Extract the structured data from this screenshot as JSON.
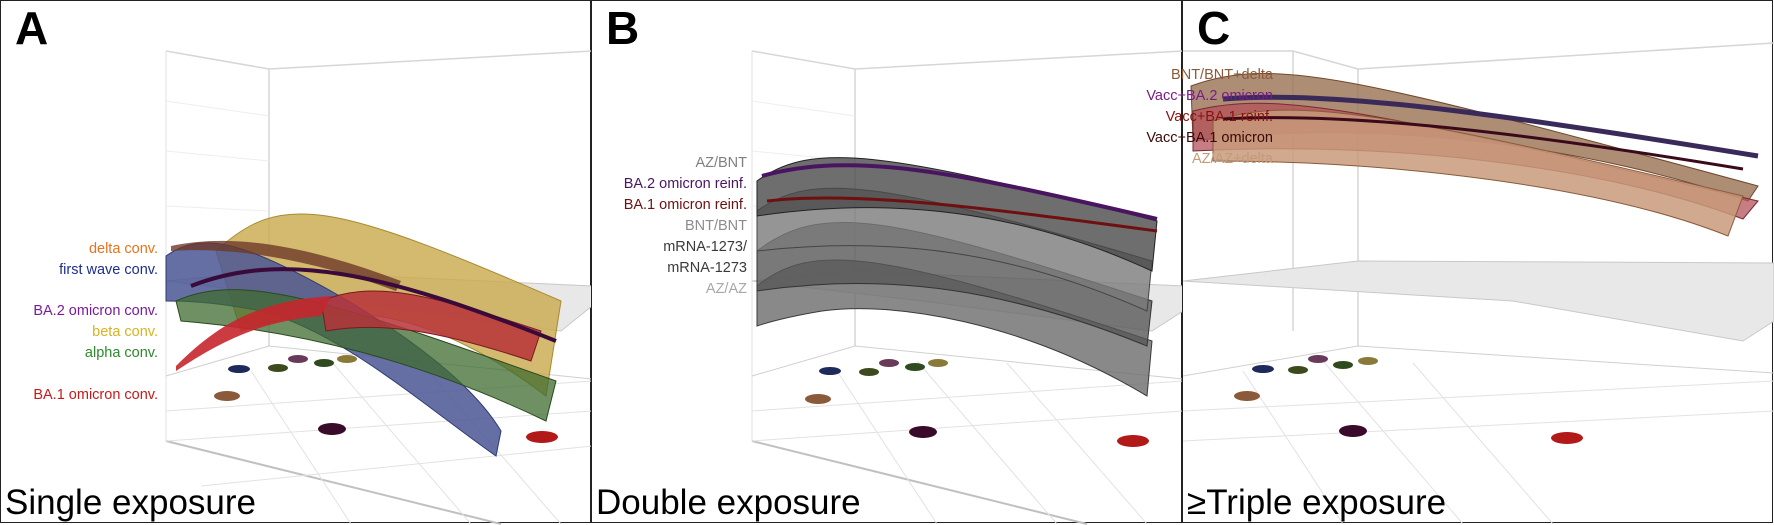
{
  "panels": [
    {
      "letter": "A",
      "caption": "Single exposure",
      "legend": [
        {
          "text": "delta conv.",
          "color": "#e8731c"
        },
        {
          "text": "first wave conv.",
          "color": "#1c2f8f"
        },
        {
          "text": "BA.2 omicron conv.",
          "color": "#7b1a9c"
        },
        {
          "text": "beta conv.",
          "color": "#d8b321"
        },
        {
          "text": "alpha conv.",
          "color": "#2c8a2c"
        },
        {
          "text": "BA.1 omicron conv.",
          "color": "#c61a1a"
        }
      ]
    },
    {
      "letter": "B",
      "caption": "Double exposure",
      "legend": [
        {
          "text": "AZ/BNT",
          "color": "#808080"
        },
        {
          "text": "BA.2 omicron reinf.",
          "color": "#4a1560"
        },
        {
          "text": "BA.1 omicron reinf.",
          "color": "#6e1010"
        },
        {
          "text": "BNT/BNT",
          "color": "#8c8c8c"
        },
        {
          "text": "mRNA-1273/",
          "color": "#3a3a3a"
        },
        {
          "text": "mRNA-1273",
          "color": "#3a3a3a"
        },
        {
          "text": "AZ/AZ",
          "color": "#a8a8a8"
        }
      ]
    },
    {
      "letter": "C",
      "caption": "≥Triple exposure",
      "legend": [
        {
          "text": "BNT/BNT+delta",
          "color": "#8a5a3a"
        },
        {
          "text": "Vacc+BA.2 omicron",
          "color": "#7a1a8a"
        },
        {
          "text": "Vacc+BA.1 reinf.",
          "color": "#8a1010"
        },
        {
          "text": "Vacc+BA.1 omicron",
          "color": "#3a0a0a"
        },
        {
          "text": "AZ/AZ+delta",
          "color": "#c49a78"
        }
      ]
    }
  ],
  "colors": {
    "grid": "#cfcfcf",
    "floor": "#e6e6e6",
    "surface_a": [
      "#c9a94a",
      "#4a5694",
      "#3f6b2f",
      "#b7323a",
      "#6d3a28"
    ],
    "surface_b": [
      "#6b6b6b",
      "#585858",
      "#7a7a7a",
      "#4a4a4a"
    ],
    "surface_c": [
      "#9a7052",
      "#6e3a4a",
      "#b3525a",
      "#c89a7a"
    ],
    "dots": [
      "#1e2a5a",
      "#3c4a1e",
      "#6a3a5a",
      "#2e4a1e",
      "#8a7a3a",
      "#8a5a3a",
      "#3a0a2a",
      "#b21a1a"
    ]
  }
}
